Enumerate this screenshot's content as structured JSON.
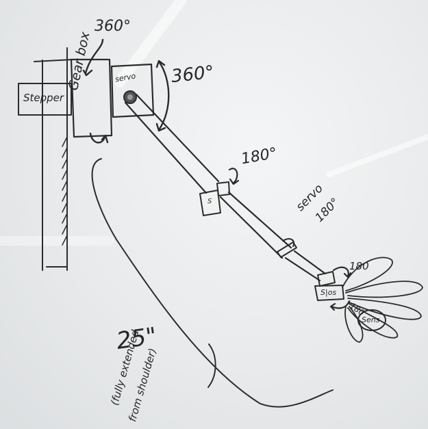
{
  "labels": {
    "stepper": "Stepper",
    "gearbox": "Gear box",
    "gearbox_rotation": "360°",
    "shoulder_servo": "servo",
    "shoulder_rotation": "360°",
    "elbow_rotation": "180°",
    "elbow_servo_marker": "S",
    "forearm_servo": "servo",
    "forearm_rotation": "180°",
    "wrist_rotation_a": "180",
    "wrist_servo": "S|os",
    "wrist_rotation_b": "180",
    "hand_sensor": "Sens",
    "reach": "25\"",
    "reach_note_1": "(fully extended",
    "reach_note_2": "from shoulder)"
  }
}
